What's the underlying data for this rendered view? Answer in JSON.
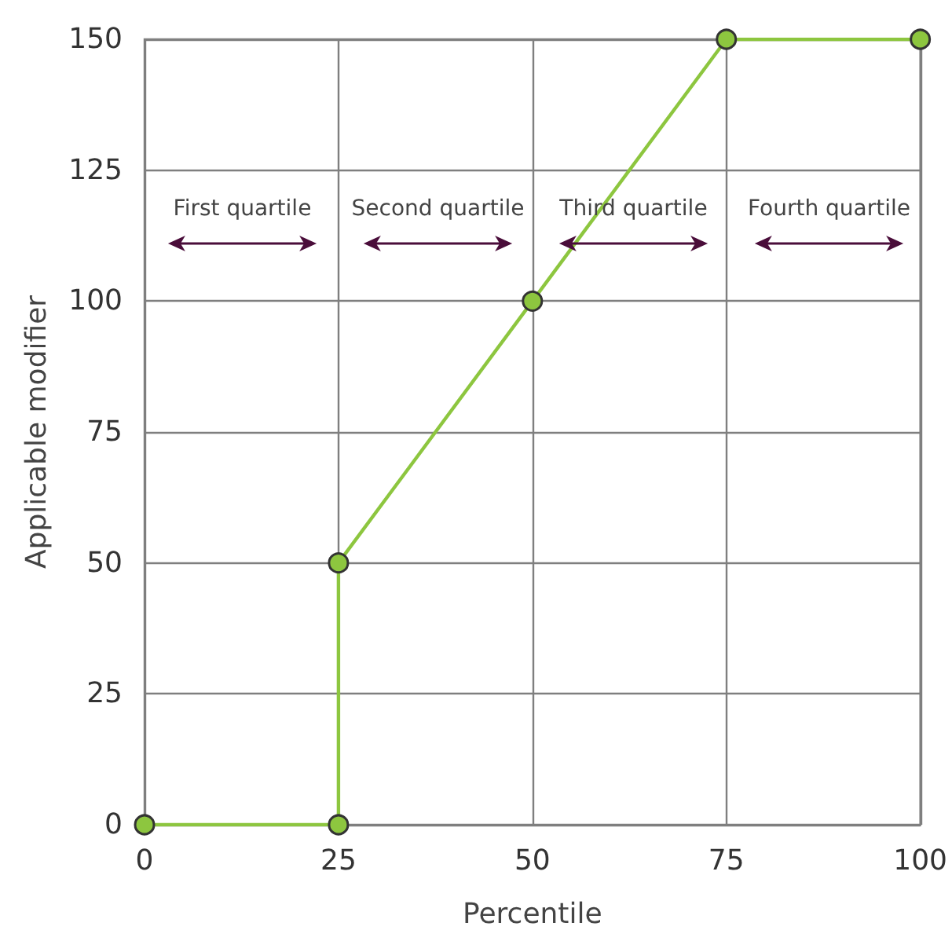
{
  "chart_data": {
    "type": "line",
    "xlabel": "Percentile",
    "ylabel": "Applicable modifier",
    "x": [
      0,
      25,
      25,
      50,
      75,
      100
    ],
    "series": [
      {
        "color": "#8dc63f",
        "values": [
          0,
          0,
          50,
          100,
          150,
          150
        ]
      }
    ],
    "xlim": [
      0,
      100
    ],
    "xticks": [
      0,
      25,
      50,
      75,
      100
    ],
    "ylim": [
      0,
      150
    ],
    "yticks": [
      0,
      25,
      50,
      75,
      100,
      125,
      150
    ],
    "grid": true,
    "marker": "circle",
    "line_style": "solid",
    "annotations": [
      "First quartile",
      "Second quartile",
      "Third quartile",
      "Fourth quartile"
    ]
  }
}
